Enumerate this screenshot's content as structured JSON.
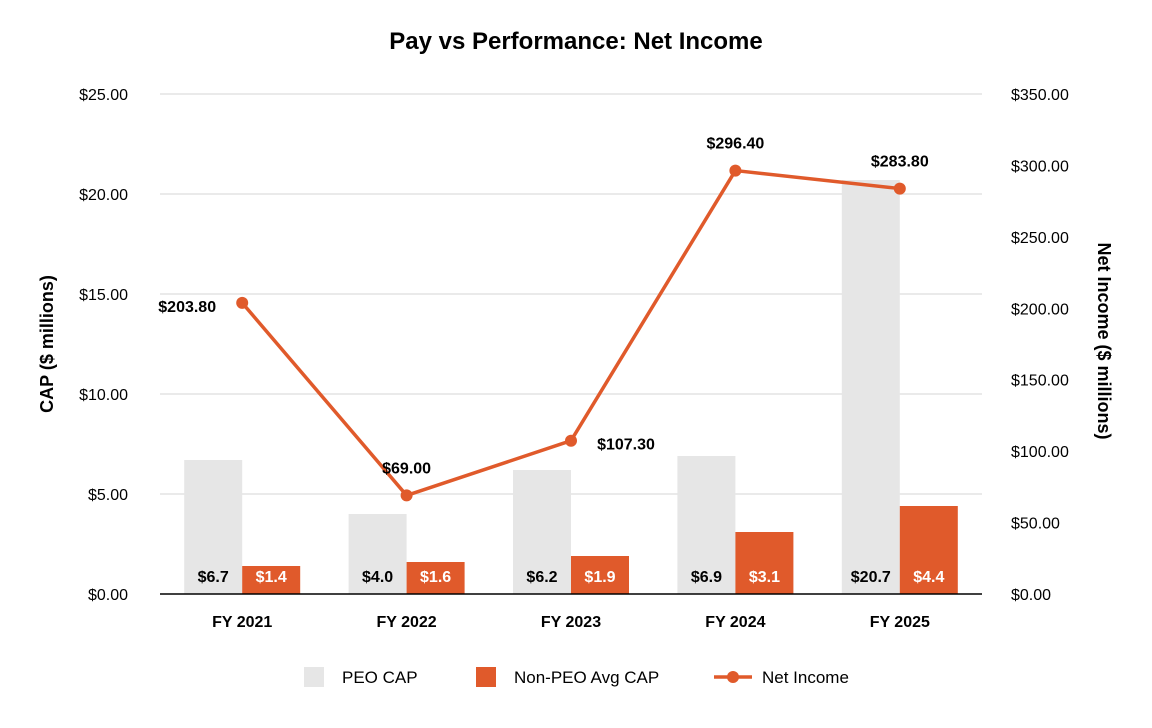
{
  "chart_data": {
    "type": "bar",
    "title": "Pay vs Performance: Net Income",
    "categories": [
      "FY 2021",
      "FY 2022",
      "FY 2023",
      "FY 2024",
      "FY 2025"
    ],
    "left_axis": {
      "label": "CAP ($ millions)",
      "ylim": [
        0,
        25
      ],
      "ticks": [
        "$0.00",
        "$5.00",
        "$10.00",
        "$15.00",
        "$20.00",
        "$25.00"
      ]
    },
    "right_axis": {
      "label": "Net Income ($ millions)",
      "ylim": [
        0,
        350
      ],
      "ticks": [
        "$0.00",
        "$50.00",
        "$100.00",
        "$150.00",
        "$200.00",
        "$250.00",
        "$300.00",
        "$350.00"
      ]
    },
    "series": [
      {
        "name": "PEO CAP",
        "kind": "bar",
        "axis": "left",
        "color": "#e6e6e6",
        "label_color": "#000000",
        "values": [
          6.7,
          4.0,
          6.2,
          6.9,
          20.7
        ],
        "labels": [
          "$6.7",
          "$4.0",
          "$6.2",
          "$6.9",
          "$20.7"
        ]
      },
      {
        "name": "Non-PEO Avg CAP",
        "kind": "bar",
        "axis": "left",
        "color": "#e05a2b",
        "label_color": "#ffffff",
        "values": [
          1.4,
          1.6,
          1.9,
          3.1,
          4.4
        ],
        "labels": [
          "$1.4",
          "$1.6",
          "$1.9",
          "$3.1",
          "$4.4"
        ]
      },
      {
        "name": "Net Income",
        "kind": "line",
        "axis": "right",
        "color": "#e05a2b",
        "values": [
          203.8,
          69.0,
          107.3,
          296.4,
          283.8
        ],
        "labels": [
          "$203.80",
          "$69.00",
          "$107.30",
          "$296.40",
          "$283.80"
        ]
      }
    ],
    "grid": true,
    "legend": "bottom"
  }
}
